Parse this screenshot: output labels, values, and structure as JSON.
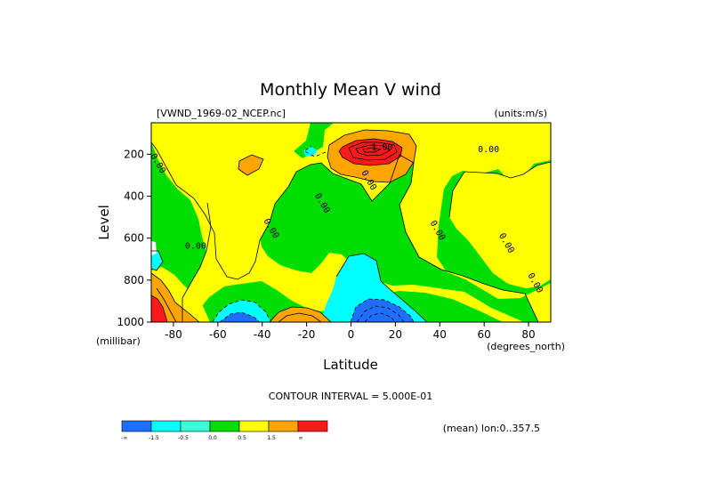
{
  "chart_data": {
    "type": "contour",
    "title": "Monthly Mean V wind",
    "dataset": "[VWND_1969-02_NCEP.nc]",
    "units_label": "(units:m/s)",
    "xlabel": "Latitude",
    "ylabel": "Level",
    "x_units_label": "(degrees_north)",
    "y_units_label": "(millibar)",
    "xlim": [
      -90,
      90
    ],
    "ylim": [
      1000,
      50
    ],
    "x_ticks": [
      -80,
      -60,
      -40,
      -20,
      0,
      20,
      40,
      60,
      80
    ],
    "x_tick_labels": [
      "-80",
      "-60",
      "-40",
      "-20",
      "0",
      "20",
      "40",
      "60",
      "80"
    ],
    "y_ticks": [
      200,
      400,
      600,
      800,
      1000
    ],
    "y_tick_labels": [
      "200",
      "400",
      "600",
      "800",
      "1000"
    ],
    "contour_interval_text": "CONTOUR INTERVAL = 5.000E-01",
    "mean_text": "(mean) lon:0..357.5",
    "contour_labels": [
      {
        "text": "0.00",
        "x": -88,
        "y": 250
      },
      {
        "text": "0.00",
        "x": -70,
        "y": 650
      },
      {
        "text": "0.00",
        "x": -37,
        "y": 560
      },
      {
        "text": "0.00",
        "x": -14,
        "y": 440
      },
      {
        "text": "1.00",
        "x": 14,
        "y": 180
      },
      {
        "text": "0.00",
        "x": 7,
        "y": 330
      },
      {
        "text": "0.00",
        "x": 62,
        "y": 190
      },
      {
        "text": "0.00",
        "x": 38,
        "y": 570
      },
      {
        "text": "0.00",
        "x": 69,
        "y": 630
      },
      {
        "text": "0.00",
        "x": 82,
        "y": 820
      }
    ],
    "colorbar": {
      "colors": [
        "#1e6eff",
        "#00ffff",
        "#37ffd8",
        "#00dd00",
        "#ffff00",
        "#ffa500",
        "#ff1a1a"
      ],
      "labels": [
        "-∞",
        "-1.5",
        "-0.5",
        "0.0",
        "0.5",
        "1.5",
        "∞"
      ]
    },
    "colors": {
      "blue": "#1e6eff",
      "cyan": "#00ffff",
      "green": "#00dd00",
      "yellow": "#ffff00",
      "orange": "#ffa500",
      "red": "#ff1a1a"
    }
  }
}
